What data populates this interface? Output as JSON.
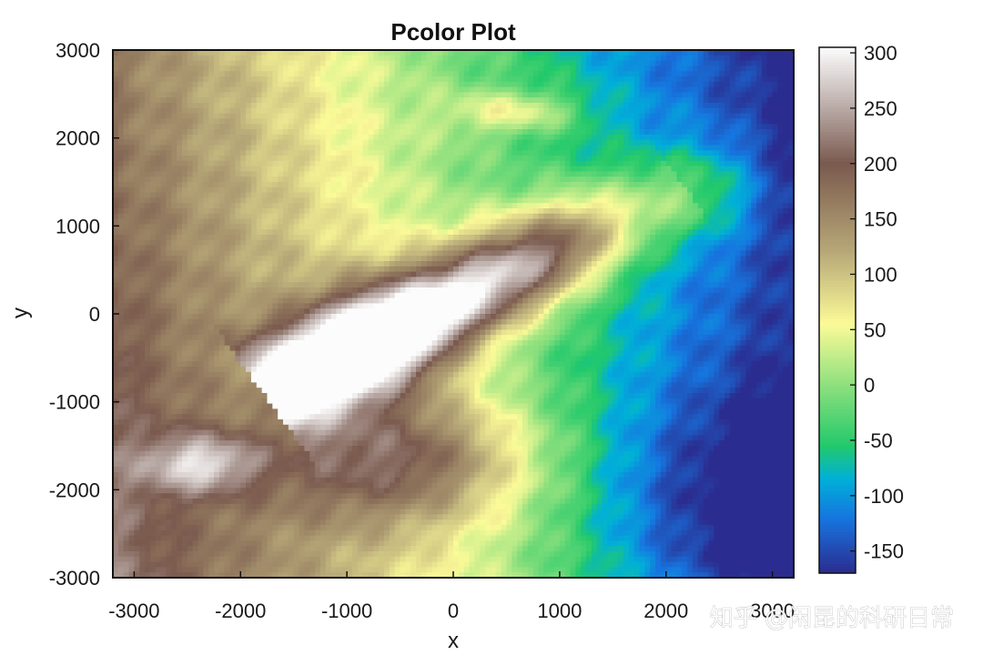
{
  "chart_data": {
    "type": "heatmap",
    "title": "Pcolor Plot",
    "xlabel": "x",
    "ylabel": "y",
    "xlim": [
      -3200,
      3200
    ],
    "ylim": [
      -3000,
      3000
    ],
    "x_ticks": [
      -3000,
      -2000,
      -1000,
      0,
      1000,
      2000,
      3000
    ],
    "x_tick_labels": [
      "-3000",
      "-2000",
      "-1000",
      "0",
      "1000",
      "2000",
      "3000"
    ],
    "y_ticks": [
      -3000,
      -2000,
      -1000,
      0,
      1000,
      2000,
      3000
    ],
    "y_tick_labels": [
      "-3000",
      "-2000",
      "-1000",
      "0",
      "1000",
      "2000",
      "3000"
    ],
    "colorbar": {
      "clim": [
        -170,
        305
      ],
      "ticks": [
        -150,
        -100,
        -50,
        0,
        50,
        100,
        150,
        200,
        250,
        300
      ],
      "tick_labels": [
        "-150",
        "-100",
        "-50",
        "0",
        "50",
        "100",
        "150",
        "200",
        "250",
        "300"
      ],
      "colormap": "terrain",
      "stops": [
        {
          "value": -170,
          "color": "#2b2c8f"
        },
        {
          "value": -120,
          "color": "#1676e0"
        },
        {
          "value": -85,
          "color": "#00b0d8"
        },
        {
          "value": -55,
          "color": "#22c96b"
        },
        {
          "value": 0,
          "color": "#8fe07e"
        },
        {
          "value": 55,
          "color": "#fbfa98"
        },
        {
          "value": 120,
          "color": "#b7a878"
        },
        {
          "value": 200,
          "color": "#7a5a4e"
        },
        {
          "value": 250,
          "color": "#b9aaa6"
        },
        {
          "value": 305,
          "color": "#fcfcfc"
        }
      ]
    },
    "grid": false
  },
  "watermark": "知乎 @闲昆的科研日常"
}
